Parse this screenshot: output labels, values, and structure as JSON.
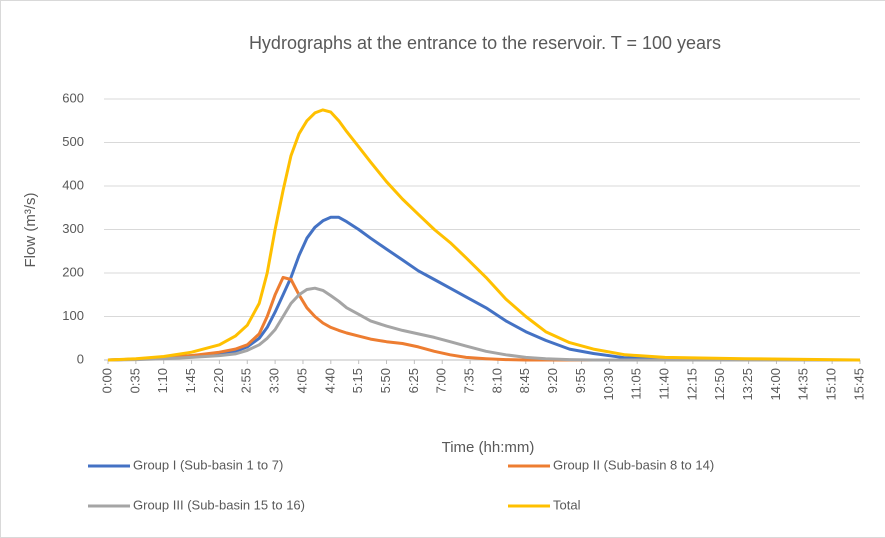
{
  "chart_data": {
    "type": "line",
    "title": "Hydrographs at the entrance to the reservoir. T = 100 years",
    "x_label": "Time (hh:mm)",
    "y_label": "Flow (m³/s)",
    "x": [
      0,
      35,
      70,
      105,
      140,
      160,
      175,
      190,
      200,
      210,
      220,
      230,
      240,
      250,
      260,
      270,
      280,
      290,
      300,
      315,
      330,
      350,
      370,
      390,
      410,
      430,
      450,
      475,
      500,
      525,
      550,
      580,
      610,
      650,
      700,
      800,
      945
    ],
    "series": [
      {
        "name": "Group I (Sub-basin 1 to 7)",
        "color": "#4472c4",
        "values": [
          0,
          2,
          5,
          10,
          15,
          20,
          30,
          50,
          75,
          110,
          150,
          190,
          240,
          280,
          305,
          320,
          328,
          328,
          318,
          300,
          280,
          255,
          230,
          205,
          185,
          165,
          145,
          120,
          90,
          65,
          45,
          25,
          15,
          5,
          2,
          0,
          0
        ]
      },
      {
        "name": "Group II (Sub-basin 8 to 14)",
        "color": "#ed7d31",
        "values": [
          0,
          2,
          5,
          10,
          18,
          25,
          35,
          60,
          100,
          150,
          190,
          185,
          150,
          120,
          100,
          85,
          75,
          68,
          62,
          55,
          48,
          42,
          38,
          30,
          20,
          12,
          6,
          3,
          1,
          0,
          0,
          0,
          0,
          0,
          0,
          0,
          0
        ]
      },
      {
        "name": "Group III (Sub-basin 15 to 16)",
        "color": "#a5a5a5",
        "values": [
          0,
          1,
          3,
          6,
          10,
          14,
          22,
          35,
          50,
          70,
          100,
          130,
          150,
          162,
          165,
          160,
          148,
          135,
          120,
          105,
          90,
          78,
          68,
          60,
          52,
          42,
          32,
          20,
          12,
          6,
          3,
          1,
          0,
          0,
          0,
          0,
          0
        ]
      },
      {
        "name": "Total",
        "color": "#ffc000",
        "values": [
          0,
          3,
          8,
          18,
          35,
          55,
          80,
          130,
          200,
          300,
          390,
          470,
          520,
          550,
          568,
          575,
          570,
          550,
          525,
          490,
          455,
          410,
          370,
          335,
          300,
          270,
          235,
          190,
          140,
          100,
          65,
          40,
          25,
          12,
          6,
          3,
          0
        ]
      }
    ],
    "xlim": [
      0,
      945
    ],
    "xticks": [
      {
        "value": 0,
        "label": "0:00"
      },
      {
        "value": 35,
        "label": "0:35"
      },
      {
        "value": 70,
        "label": "1:10"
      },
      {
        "value": 105,
        "label": "1:45"
      },
      {
        "value": 140,
        "label": "2:20"
      },
      {
        "value": 175,
        "label": "2:55"
      },
      {
        "value": 210,
        "label": "3:30"
      },
      {
        "value": 245,
        "label": "4:05"
      },
      {
        "value": 280,
        "label": "4:40"
      },
      {
        "value": 315,
        "label": "5:15"
      },
      {
        "value": 350,
        "label": "5:50"
      },
      {
        "value": 385,
        "label": "6:25"
      },
      {
        "value": 420,
        "label": "7:00"
      },
      {
        "value": 455,
        "label": "7:35"
      },
      {
        "value": 490,
        "label": "8:10"
      },
      {
        "value": 525,
        "label": "8:45"
      },
      {
        "value": 560,
        "label": "9:20"
      },
      {
        "value": 595,
        "label": "9:55"
      },
      {
        "value": 630,
        "label": "10:30"
      },
      {
        "value": 665,
        "label": "11:05"
      },
      {
        "value": 700,
        "label": "11:40"
      },
      {
        "value": 735,
        "label": "12:15"
      },
      {
        "value": 770,
        "label": "12:50"
      },
      {
        "value": 805,
        "label": "13:25"
      },
      {
        "value": 840,
        "label": "14:00"
      },
      {
        "value": 875,
        "label": "14:35"
      },
      {
        "value": 910,
        "label": "15:10"
      },
      {
        "value": 945,
        "label": "15:45"
      }
    ],
    "ylim": [
      0,
      600
    ],
    "yticks": [
      0,
      100,
      200,
      300,
      400,
      500,
      600
    ],
    "grid": true
  }
}
